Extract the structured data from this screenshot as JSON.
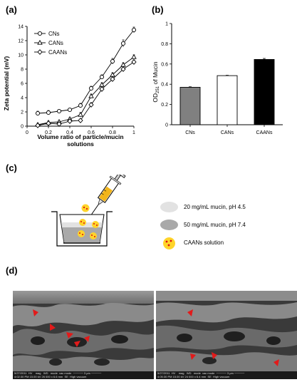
{
  "panels": {
    "a": "(a)",
    "b": "(b)",
    "c": "(c)",
    "d": "(d)"
  },
  "chart_data": [
    {
      "type": "line",
      "panel": "(a)",
      "xlabel": "Volume ratio of particle/mucin solutions",
      "ylabel": "Zeta potential (mV)",
      "xlim": [
        0,
        1
      ],
      "ylim": [
        0,
        14
      ],
      "xticks": [
        "0",
        "0.2",
        "0.4",
        "0.6",
        "0.8",
        "1"
      ],
      "yticks": [
        "0",
        "2",
        "4",
        "6",
        "8",
        "10",
        "12",
        "14"
      ],
      "legend_position": "top-left",
      "grid": false,
      "x": [
        0.1,
        0.2,
        0.3,
        0.4,
        0.5,
        0.6,
        0.7,
        0.8,
        0.9,
        1.0
      ],
      "series": [
        {
          "name": "CNs",
          "marker": "circle",
          "values": [
            1.8,
            1.9,
            2.1,
            2.3,
            2.9,
            5.3,
            6.9,
            9.1,
            11.6,
            13.5
          ],
          "errors": [
            0.3,
            0.3,
            0.2,
            0.2,
            0.3,
            0.3,
            0.3,
            0.4,
            0.5,
            0.4
          ]
        },
        {
          "name": "CANs",
          "marker": "triangle",
          "values": [
            0.2,
            0.5,
            0.6,
            1.0,
            1.6,
            4.2,
            5.8,
            7.2,
            8.6,
            9.7
          ],
          "errors": [
            0.2,
            0.2,
            0.2,
            0.2,
            0.3,
            0.3,
            0.3,
            0.3,
            0.3,
            0.3
          ]
        },
        {
          "name": "CAANs",
          "marker": "diamond",
          "values": [
            0.1,
            0.4,
            0.3,
            0.7,
            0.8,
            3.0,
            5.2,
            6.6,
            8.0,
            9.0
          ],
          "errors": [
            0.2,
            0.2,
            0.2,
            0.2,
            0.2,
            0.3,
            0.3,
            0.3,
            0.3,
            0.3
          ]
        }
      ]
    },
    {
      "type": "bar",
      "panel": "(b)",
      "ylabel": "OD",
      "ylabel_sub": "251",
      "ylabel_rest": " of Mucin",
      "ylim": [
        0,
        1
      ],
      "yticks": [
        "0",
        "0.2",
        "0.4",
        "0.6",
        "0.8",
        "1"
      ],
      "categories": [
        "CNs",
        "CANs",
        "CAANs"
      ],
      "values": [
        0.37,
        0.485,
        0.645
      ],
      "errors": [
        0.005,
        0.004,
        0.01
      ],
      "colors": [
        "#808080",
        "#ffffff",
        "#000000"
      ]
    }
  ],
  "schematic": {
    "legend": [
      {
        "label": "20 mg/mL mucin, pH 4.5",
        "color": "#e2e2e2"
      },
      {
        "label": "50 mg/mL mucin, pH 7.4",
        "color": "#a9a9a9"
      },
      {
        "label": "CAANs solution",
        "color": "#ffd42a"
      }
    ]
  },
  "sem": [
    {
      "footer_line1": "5/27/2011  HV    mag   WD   mode  vac mode  ───── 3 μm ─────",
      "footer_line2": "4:02:30 PM 15.00 kV 26 000 x 6.6 mm  SE  High vacuum"
    },
    {
      "footer_line1": "5/27/2011  HV    mag   WD   mode  vac mode  ───── 3 μm ─────",
      "footer_line2": "4:05:30 PM 15.00 kV 24 000 x 6.4 mm  SE  High vacuum"
    }
  ]
}
